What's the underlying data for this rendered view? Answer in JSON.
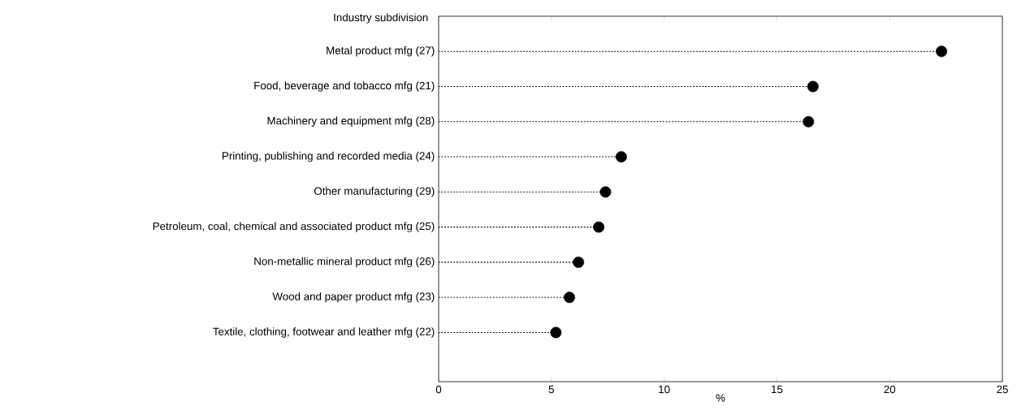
{
  "chart_data": {
    "type": "lollipop",
    "orientation": "horizontal",
    "ylabel": "Industry subdivision",
    "xlabel": "%",
    "categories": [
      "Metal product mfg (27)",
      "Food, beverage and tobacco mfg (21)",
      "Machinery and equipment mfg (28)",
      "Printing, publishing and recorded media (24)",
      "Other manufacturing (29)",
      "Petroleum, coal, chemical and associated product mfg (25)",
      "Non-metallic mineral product mfg (26)",
      "Wood and paper product mfg (23)",
      "Textile, clothing, footwear and leather mfg (22)"
    ],
    "values": [
      22.3,
      16.6,
      16.4,
      8.1,
      7.4,
      7.1,
      6.2,
      5.8,
      5.2
    ],
    "color": "#000000",
    "marker": "circle",
    "line_style": "dotted",
    "xlim": [
      0,
      25
    ],
    "xticks": [
      0,
      5,
      10,
      15,
      20,
      25
    ]
  }
}
